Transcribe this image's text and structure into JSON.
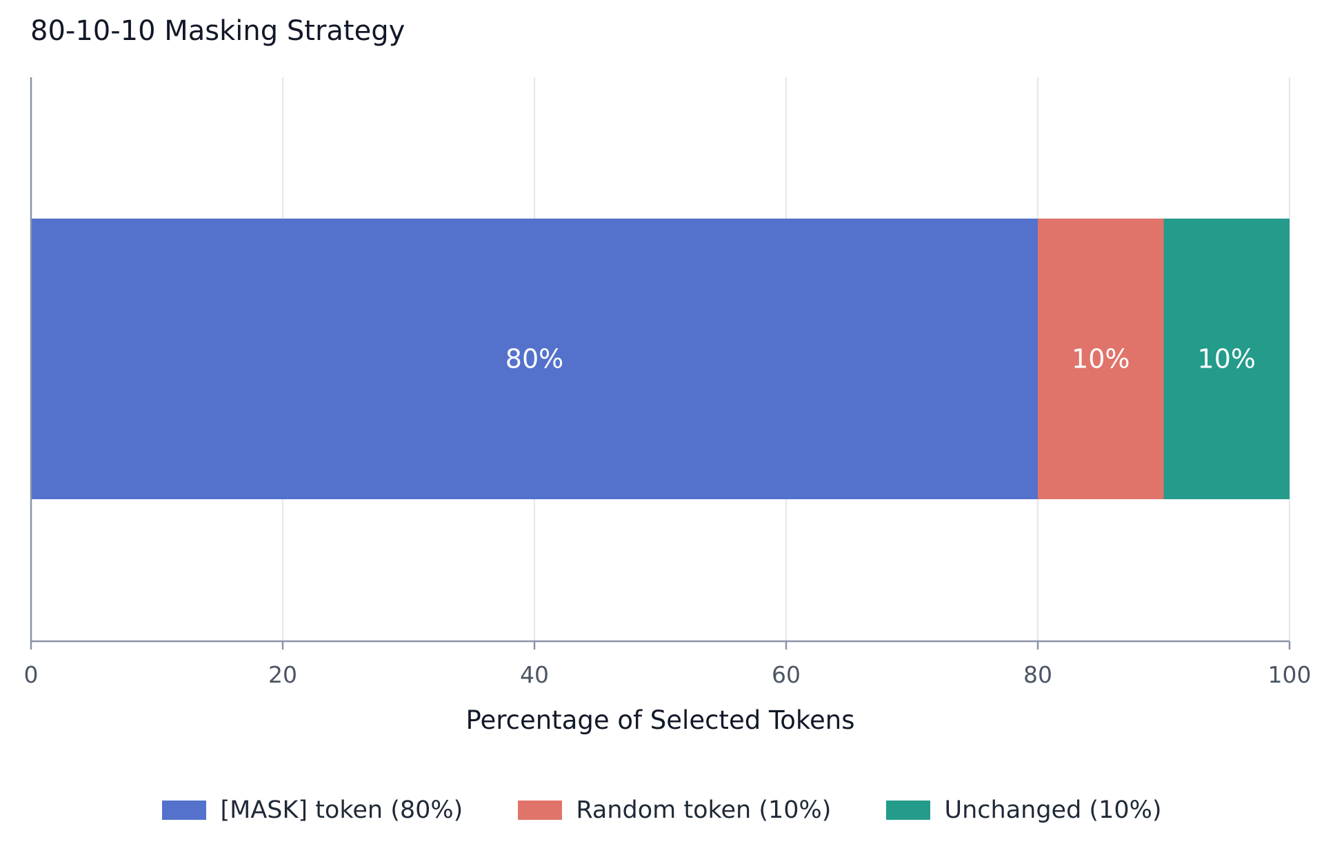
{
  "chart_data": {
    "type": "bar",
    "orientation": "horizontal",
    "stacked": true,
    "title": "80-10-10 Masking Strategy",
    "xlabel": "Percentage of Selected Tokens",
    "ylabel": "",
    "xlim": [
      0,
      100
    ],
    "xticks": [
      0,
      20,
      40,
      60,
      80,
      100
    ],
    "grid": true,
    "legend_position": "bottom",
    "series": [
      {
        "name": "[MASK] token (80%)",
        "values": [
          80
        ],
        "label": "80%",
        "color": "#5472cc"
      },
      {
        "name": "Random token (10%)",
        "values": [
          10
        ],
        "label": "10%",
        "color": "#e1746a"
      },
      {
        "name": "Unchanged (10%)",
        "values": [
          10
        ],
        "label": "10%",
        "color": "#249b8b"
      }
    ]
  }
}
